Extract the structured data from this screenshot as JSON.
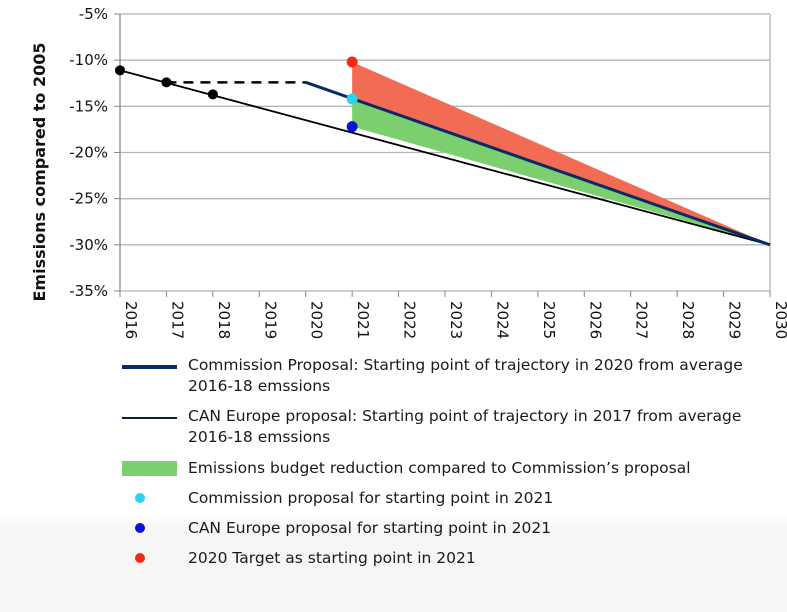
{
  "chart_data": {
    "type": "line",
    "ylabel": "Emissions compared to 2005",
    "xlabel": "",
    "x": [
      2016,
      2017,
      2018,
      2019,
      2020,
      2021,
      2022,
      2023,
      2024,
      2025,
      2026,
      2027,
      2028,
      2029,
      2030
    ],
    "xlim": [
      2016,
      2030
    ],
    "ylim": [
      -35,
      -5
    ],
    "yticks": [
      "-5%",
      "-10%",
      "-15%",
      "-20%",
      "-25%",
      "-30%",
      "-35%"
    ],
    "ytick_values": [
      -5,
      -10,
      -15,
      -20,
      -25,
      -30,
      -35
    ],
    "grid": true,
    "historical_points": {
      "x": [
        2016,
        2017,
        2018
      ],
      "y": [
        -11.1,
        -12.4,
        -13.7
      ],
      "color": "#000000"
    },
    "dashed_line": {
      "x": [
        2017,
        2020
      ],
      "y": [
        -12.4,
        -12.4
      ]
    },
    "series": [
      {
        "name": "Commission Proposal: Starting point of trajectory in 2020 from average 2016-18 emssions",
        "x": [
          2020,
          2030
        ],
        "y": [
          -12.4,
          -30
        ],
        "color": "#0a2a66"
      },
      {
        "name": "CAN Europe proposal: Starting point of trajectory in 2017 from average 2016-18 emssions",
        "x": [
          2016,
          2030
        ],
        "y": [
          -11.1,
          -30
        ],
        "color": "#000000"
      }
    ],
    "areas": [
      {
        "name": "Emissions budget reduction compared to Commission’s proposal",
        "color": "#7ccf6e",
        "x": [
          2021,
          2030
        ],
        "upper": [
          -14.2,
          -30
        ],
        "lower": [
          -17.2,
          -30
        ]
      },
      {
        "color": "#f26b55",
        "x": [
          2021,
          2030
        ],
        "upper": [
          -10.2,
          -30
        ],
        "lower": [
          -14.2,
          -30
        ]
      }
    ],
    "markers": [
      {
        "name": "Commission proposal for starting point in 2021",
        "x": 2021,
        "y": -14.2,
        "color": "#2bd3f0"
      },
      {
        "name": "CAN Europe proposal for starting point in 2021",
        "x": 2021,
        "y": -17.2,
        "color": "#0a14d8"
      },
      {
        "name": "2020 Target as starting point in 2021",
        "x": 2021,
        "y": -10.2,
        "color": "#f22b10"
      }
    ]
  }
}
